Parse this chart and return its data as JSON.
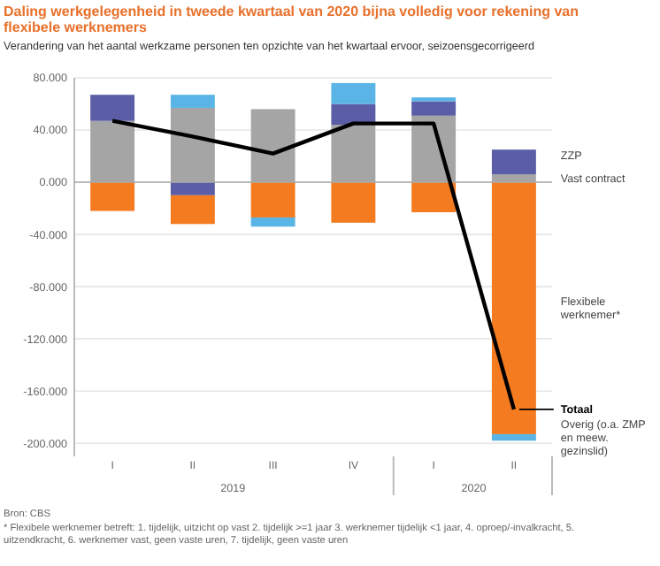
{
  "chart_data": {
    "type": "bar",
    "title": "Daling werkgelegenheid in tweede kwartaal van 2020 bijna volledig voor rekening van flexibele werknemers",
    "subtitle": "Verandering van het aantal werkzame personen ten opzichte van het kwartaal ervoor, seizoensgecorrigeerd",
    "categories": [
      "I",
      "II",
      "III",
      "IV",
      "I",
      "II"
    ],
    "series": [
      {
        "name": "Vast contract",
        "color": "#a5a5a5",
        "values": [
          47,
          57,
          56,
          44,
          51,
          6
        ]
      },
      {
        "name": "ZZP",
        "color": "#5b5ea6",
        "values": [
          20,
          -10,
          null,
          16,
          11,
          19
        ]
      },
      {
        "name": "Flexibele werknemer*",
        "color": "#f47b20",
        "values": [
          -22,
          -22,
          -27,
          -31,
          -23,
          -193
        ]
      },
      {
        "name": "Overig (o.a. ZMP en meew. gezinslid)",
        "color": "#5ab4e5",
        "values": [
          null,
          10,
          -7,
          16,
          3,
          -5
        ]
      },
      {
        "name": "Totaal",
        "type": "line",
        "color": "#000000",
        "values": [
          47,
          35,
          22,
          45,
          45,
          -174
        ]
      }
    ],
    "stacked": true,
    "ylim": [
      -210,
      80
    ],
    "yticks": [
      {
        "value": -200,
        "label": "-200.000"
      },
      {
        "value": -160,
        "label": "-160.000"
      },
      {
        "value": -120,
        "label": "-120.000"
      },
      {
        "value": -80,
        "label": "-80.000"
      },
      {
        "value": -40,
        "label": "-40.000"
      },
      {
        "value": 0,
        "label": "0.000"
      },
      {
        "value": 40,
        "label": "40.000"
      },
      {
        "value": 80,
        "label": "80.000"
      }
    ],
    "grid": "y",
    "legend": "right",
    "marker": "none",
    "annotations": [
      "2019",
      "2020",
      "Bron: CBS",
      "* Flexibele werknemer betreft: 1. tijdelijk, uitzicht op vast 2. tijdelijk >=1 jaar 3. werknemer tijdelijk <1 jaar, 4. oproep/-invalkracht, 5. uitzendkracht, 6. werknemer vast, geen vaste uren, 7. tijdelijk, geen vaste uren"
    ]
  }
}
